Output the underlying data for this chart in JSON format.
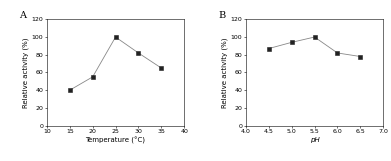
{
  "panel_A": {
    "x": [
      15,
      20,
      25,
      30,
      35
    ],
    "y": [
      40,
      55,
      100,
      82,
      65
    ],
    "xlabel": "Temperature (°C)",
    "ylabel": "Relative activity (%)",
    "xlim": [
      10,
      40
    ],
    "ylim": [
      0,
      120
    ],
    "xticks": [
      10,
      15,
      20,
      25,
      30,
      35,
      40
    ],
    "yticks": [
      0,
      20,
      40,
      60,
      80,
      100,
      120
    ],
    "label": "A"
  },
  "panel_B": {
    "x": [
      4.5,
      5.0,
      5.5,
      6.0,
      6.5
    ],
    "y": [
      87,
      94,
      100,
      82,
      78
    ],
    "xlabel": "pH",
    "ylabel": "Relative activity (%)",
    "xlim": [
      4.0,
      7.0
    ],
    "ylim": [
      0,
      120
    ],
    "xticks": [
      4.0,
      4.5,
      5.0,
      5.5,
      6.0,
      6.5,
      7.0
    ],
    "yticks": [
      0,
      20,
      40,
      60,
      80,
      100,
      120
    ],
    "label": "B"
  },
  "line_color": "#888888",
  "marker": "s",
  "marker_color": "#222222",
  "marker_size": 2.5,
  "line_width": 0.6,
  "label_font_size": 5.0,
  "tick_font_size": 4.5,
  "panel_label_font_size": 7,
  "background_color": "#ffffff"
}
